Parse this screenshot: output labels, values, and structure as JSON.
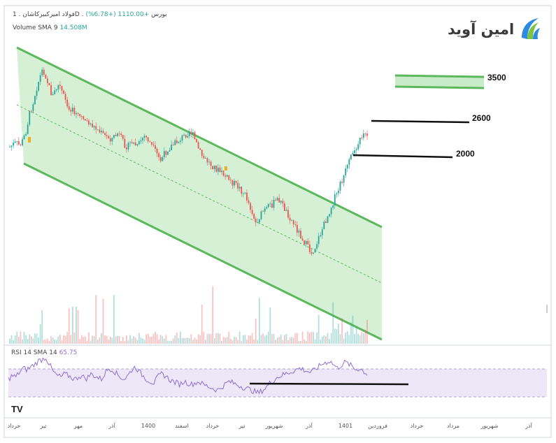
{
  "header": {
    "symbol": "فولاد امیرکبیرکاشان",
    "exchange": "بورس",
    "interval": "1D",
    "change": "+1110.00 (+6.78%)",
    "volume_label": "Volume SMA 9",
    "volume_value": "14.508M"
  },
  "rsi": {
    "label": "RSI 14 SMA 14",
    "value": "65.75"
  },
  "brand": {
    "name": "امین آوید",
    "icon": "brand-wave-icon"
  },
  "tv_logo": "TV",
  "chart_data": {
    "type": "candlestick",
    "levels": [
      {
        "value": 3500,
        "label": "3500"
      },
      {
        "value": 2600,
        "label": "2600"
      },
      {
        "value": 2000,
        "label": "2000"
      }
    ],
    "x_tick_labels": [
      "خرداد",
      "تیر",
      "مهر",
      "آذر",
      "1400",
      "اسفند",
      "خرداد",
      "تیر",
      "شهریور",
      "آذر",
      "1401",
      "فروردین",
      "خرداد",
      "مرداد",
      "شهریور",
      "آذر"
    ],
    "price_path": [
      28,
      30,
      31,
      29,
      33,
      40,
      52,
      60,
      70,
      78,
      85,
      80,
      72,
      65,
      70,
      74,
      68,
      62,
      58,
      55,
      53,
      50,
      52,
      48,
      46,
      44,
      42,
      40,
      38,
      36,
      35,
      34,
      36,
      38,
      34,
      30,
      28,
      32,
      30,
      28,
      33,
      36,
      34,
      30,
      26,
      22,
      18,
      22,
      26,
      28,
      30,
      32,
      34,
      36,
      38,
      40,
      36,
      30,
      24,
      20,
      18,
      16,
      14,
      12,
      10,
      8,
      6,
      4,
      2,
      0,
      -2,
      -5,
      -8,
      -14,
      -20,
      -28,
      -24,
      -20,
      -18,
      -16,
      -14,
      -12,
      -10,
      -14,
      -18,
      -22,
      -26,
      -30,
      -34,
      -38,
      -42,
      -46,
      -50,
      -46,
      -40,
      -34,
      -28,
      -22,
      -16,
      -10,
      -4,
      2,
      8,
      14,
      20,
      26,
      30,
      34,
      40,
      36
    ],
    "rsi_path": [
      45,
      50,
      48,
      55,
      60,
      58,
      62,
      65,
      70,
      72,
      75,
      65,
      55,
      50,
      48,
      52,
      50,
      47,
      45,
      50,
      48,
      46,
      52,
      50,
      47,
      45,
      55,
      60,
      58,
      52,
      48,
      45,
      50,
      58,
      62,
      55,
      50,
      45,
      42,
      40,
      48,
      52,
      50,
      45,
      42,
      40,
      38,
      42,
      40,
      38,
      40,
      42,
      38,
      36,
      34,
      32,
      30,
      34,
      38,
      42,
      40,
      38,
      36,
      34,
      32,
      30,
      28,
      26,
      30,
      34,
      40,
      44,
      48,
      50,
      52,
      54,
      56,
      58,
      60,
      58,
      56,
      54,
      58,
      62,
      66,
      68,
      70,
      65,
      60,
      64,
      68,
      66,
      62,
      58,
      60,
      56,
      52
    ]
  }
}
